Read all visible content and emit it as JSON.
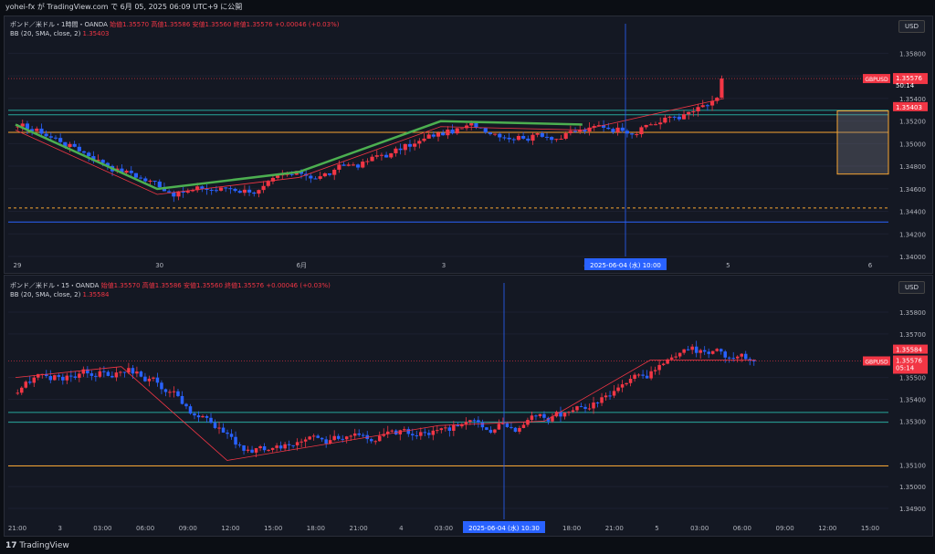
{
  "header": {
    "text": "yohei-fx が TradingView.com で 6月 05, 2025 06:09 UTC+9 に公開"
  },
  "footer": {
    "brand": "TradingView",
    "logo_glyph": "17"
  },
  "colors": {
    "bull": "#26a69a",
    "bear": "#f23645",
    "bear_candle": "#2962ff",
    "bull_candle": "#f23645",
    "basis": "#f23645",
    "green_overlay": "#4caf50",
    "orange": "#f7a531",
    "teal": "#26a69a",
    "blue": "#2962ff"
  },
  "panel_top": {
    "legend_title": "ポンド／米ドル・1時間・OANDA",
    "ohlc": "始値1.35570 高値1.35586 安値1.35560 終値1.35576 +0.00046 (+0.03%)",
    "bb_label": "BB (20, SMA, close, 2)",
    "bb_value": "1.35403",
    "currency": "USD",
    "price_axis": [
      "1.35800",
      "1.35600",
      "1.35400",
      "1.35200",
      "1.35000",
      "1.34800",
      "1.34600",
      "1.34400",
      "1.34200",
      "1.34000"
    ],
    "time_axis": [
      "29",
      "30",
      "6月",
      "3",
      "4",
      "5",
      "6"
    ],
    "cursor_time": "2025-06-04 (水)  10:00",
    "symbol_tag": "GBPUSD",
    "last_price": "1.35576",
    "countdown": "50:14",
    "bb_tag": "1.35403"
  },
  "panel_bottom": {
    "legend_title": "ポンド／米ドル・15・OANDA",
    "ohlc": "始値1.35570 高値1.35586 安値1.35560 終値1.35576 +0.00046 (+0.03%)",
    "bb_label": "BB (20, SMA, close, 2)",
    "bb_value": "1.35584",
    "currency": "USD",
    "price_axis": [
      "1.35800",
      "1.35700",
      "1.35500",
      "1.35400",
      "1.35300",
      "1.35100",
      "1.35000",
      "1.34900"
    ],
    "time_axis": [
      "21:00",
      "3",
      "03:00",
      "06:00",
      "09:00",
      "12:00",
      "15:00",
      "18:00",
      "21:00",
      "4",
      "03:00",
      "06:00",
      "15:00",
      "18:00",
      "21:00",
      "5",
      "03:00",
      "06:00",
      "09:00",
      "12:00",
      "15:00"
    ],
    "cursor_time": "2025-06-04 (水)  10:30",
    "symbol_tag": "GBPUSD",
    "bb_tag": "1.35584",
    "last_price": "1.35576",
    "countdown": "05:14"
  },
  "chart_data": [
    {
      "type": "line",
      "title": "ポンド／米ドル・1時間・OANDA",
      "ylabel": "USD",
      "ylim": [
        1.34,
        1.359
      ],
      "series": [
        {
          "name": "BB (20, SMA, close, 2)",
          "x": [
            "29",
            "30",
            "6月",
            "3",
            "4",
            "5"
          ],
          "values": [
            1.3512,
            1.3455,
            1.347,
            1.3515,
            1.3512,
            1.354
          ]
        }
      ],
      "horizontal_levels": [
        1.35295,
        1.35255,
        1.351,
        1.3443,
        1.34305
      ],
      "last": 1.35576
    },
    {
      "type": "line",
      "title": "ポンド／米ドル・15・OANDA",
      "ylabel": "USD",
      "ylim": [
        1.3485,
        1.3585
      ],
      "series": [
        {
          "name": "BB (20, SMA, close, 2)",
          "x": [
            "3",
            "09:00",
            "21:00",
            "4",
            "10:30",
            "21:00",
            "5",
            "06:00"
          ],
          "values": [
            1.355,
            1.3555,
            1.3512,
            1.352,
            1.3528,
            1.353,
            1.3558,
            1.3558
          ]
        }
      ],
      "horizontal_levels": [
        1.3534,
        1.35295,
        1.35095
      ],
      "last": 1.35576
    }
  ]
}
